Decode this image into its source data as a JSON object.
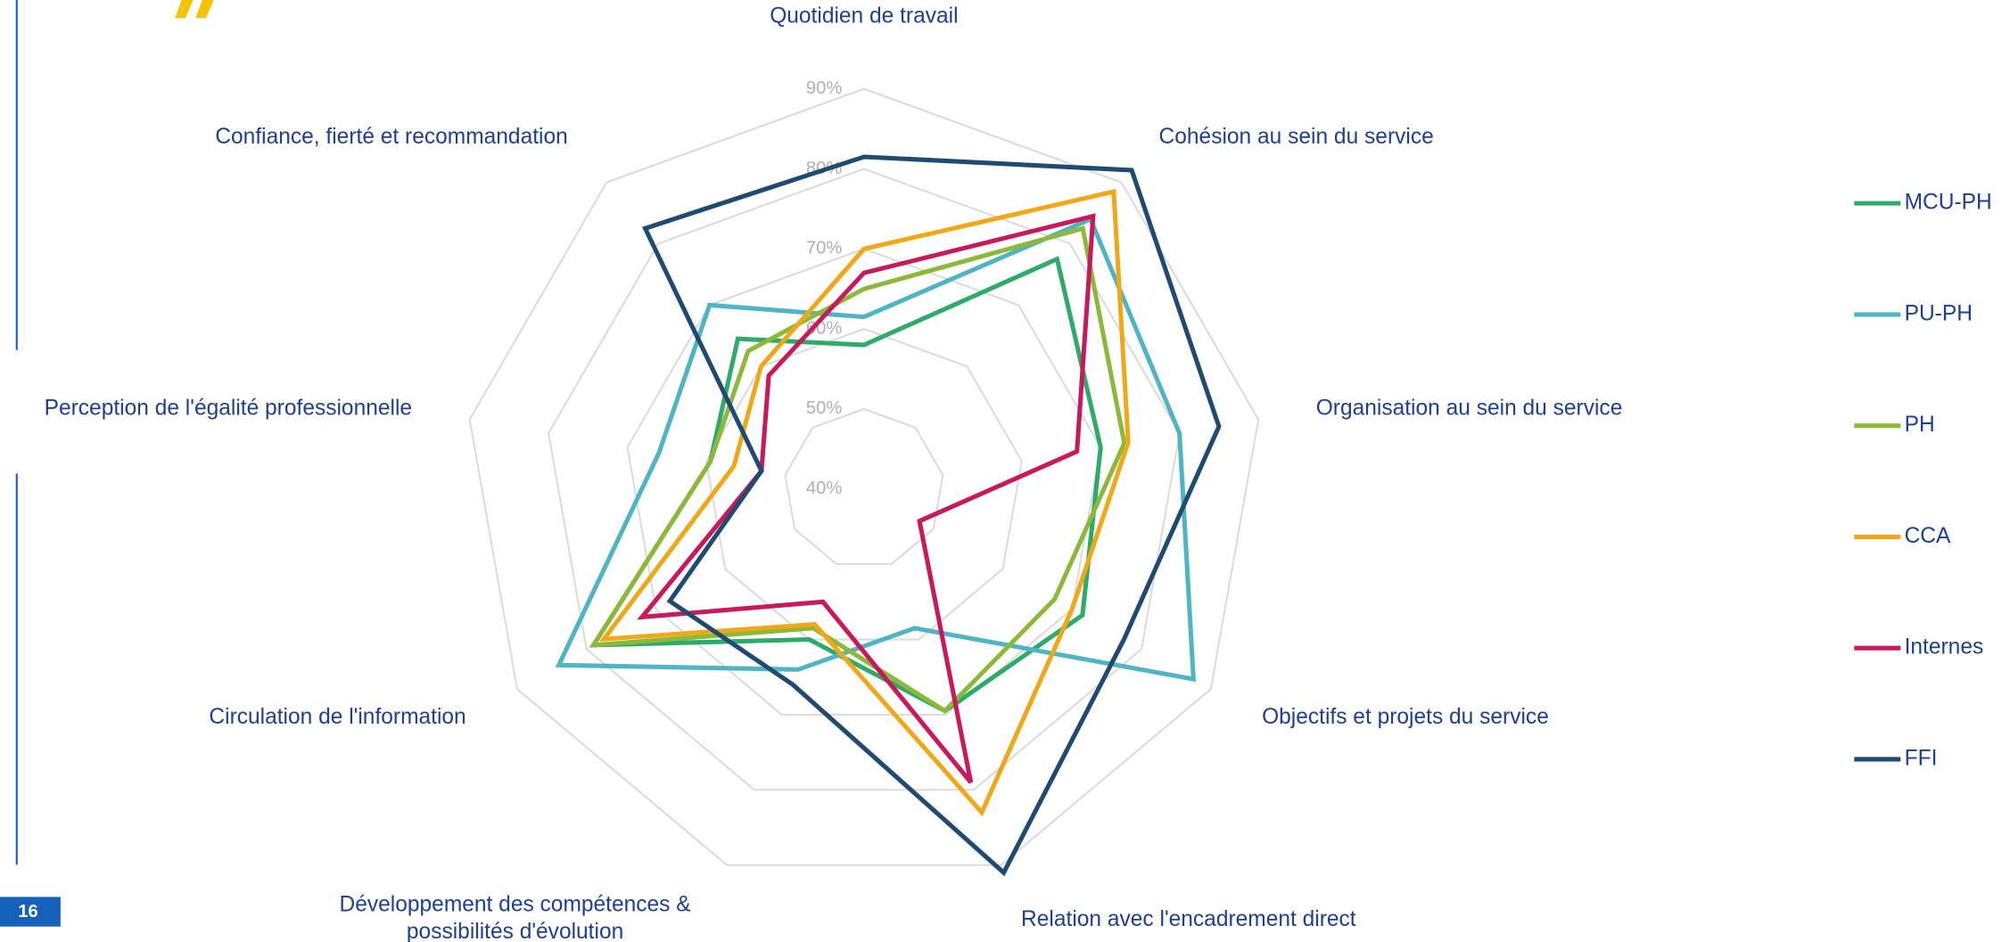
{
  "page_number": "16",
  "chart_data": {
    "type": "radar",
    "categories": [
      "Quotidien de travail",
      "Cohésion au sein du service",
      "Organisation au sein du service",
      "Objectifs et projets du service",
      "Relation avec l'encadrement direct",
      "Développement des compétences & possibilités d'évolution",
      "Circulation de l'information",
      "Perception de l'égalité professionnelle",
      "Confiance, fierté et recommandation"
    ],
    "rlim": [
      40,
      90
    ],
    "rticks": [
      {
        "value": 40,
        "label": "40%"
      },
      {
        "value": 50,
        "label": "50%"
      },
      {
        "value": 60,
        "label": "60%"
      },
      {
        "value": 70,
        "label": "70%"
      },
      {
        "value": 80,
        "label": "80%"
      },
      {
        "value": 90,
        "label": "90%"
      }
    ],
    "grid": true,
    "legend": "right",
    "series": [
      {
        "name": "MCU-PH",
        "color": "#2eaa6a",
        "values": [
          58,
          77.5,
          70,
          71.5,
          69.5,
          60,
          79,
          59.5,
          64.5
        ]
      },
      {
        "name": "PU-PH",
        "color": "#4fb5c4",
        "values": [
          61.5,
          84,
          80,
          87.5,
          58.5,
          64,
          84,
          66,
          70
        ]
      },
      {
        "name": "PH",
        "color": "#8db83a",
        "values": [
          65,
          82.5,
          73,
          67.5,
          69.5,
          58.5,
          79,
          59.5,
          62.5
        ]
      },
      {
        "name": "CCA",
        "color": "#f0a818",
        "values": [
          70,
          88.5,
          73.5,
          70,
          83,
          58,
          77.5,
          56.5,
          60
        ]
      },
      {
        "name": "Internes",
        "color": "#c8195a",
        "values": [
          67,
          84.5,
          67,
          48,
          79,
          55,
          72,
          53,
          58.5
        ]
      },
      {
        "name": "FFI",
        "color": "#1f4a72",
        "values": [
          81.5,
          92,
          85,
          77.5,
          91,
          66,
          68,
          53,
          82.5
        ]
      }
    ]
  }
}
